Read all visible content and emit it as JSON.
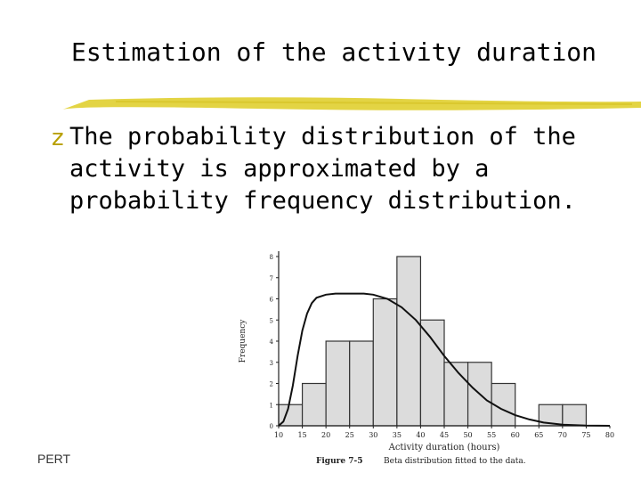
{
  "slide": {
    "title": "Estimation of the activity duration",
    "bullet_icon": "z",
    "bullet_text": "The probability distribution of the activity is approximated by a probability frequency distribution.",
    "footer": "PERT",
    "accent_color": "#e0cf30"
  },
  "chart_data": {
    "type": "bar",
    "xlabel": "Activity duration (hours)",
    "ylabel": "Frequency",
    "caption_label": "Figure 7-5",
    "caption_text": "Beta distribution fitted to the data.",
    "xlim": [
      10,
      80
    ],
    "ylim": [
      0,
      8
    ],
    "xticks": [
      10,
      15,
      20,
      25,
      30,
      35,
      40,
      45,
      50,
      55,
      60,
      65,
      70,
      75,
      80
    ],
    "yticks": [
      0,
      1,
      2,
      3,
      4,
      5,
      6,
      7,
      8
    ],
    "bins": [
      {
        "from": 10,
        "to": 15,
        "value": 1
      },
      {
        "from": 15,
        "to": 20,
        "value": 2
      },
      {
        "from": 20,
        "to": 25,
        "value": 4
      },
      {
        "from": 25,
        "to": 30,
        "value": 4
      },
      {
        "from": 30,
        "to": 35,
        "value": 6
      },
      {
        "from": 35,
        "to": 40,
        "value": 8
      },
      {
        "from": 40,
        "to": 45,
        "value": 5
      },
      {
        "from": 45,
        "to": 50,
        "value": 3
      },
      {
        "from": 50,
        "to": 55,
        "value": 3
      },
      {
        "from": 55,
        "to": 60,
        "value": 2
      },
      {
        "from": 60,
        "to": 65,
        "value": 0
      },
      {
        "from": 65,
        "to": 70,
        "value": 1
      },
      {
        "from": 70,
        "to": 75,
        "value": 1
      },
      {
        "from": 75,
        "to": 80,
        "value": 0
      }
    ],
    "fitted_curve": {
      "name": "Beta distribution",
      "points": [
        [
          10,
          0
        ],
        [
          11,
          0.2
        ],
        [
          12,
          0.8
        ],
        [
          13,
          1.9
        ],
        [
          14,
          3.3
        ],
        [
          15,
          4.5
        ],
        [
          16,
          5.3
        ],
        [
          17,
          5.8
        ],
        [
          18,
          6.05
        ],
        [
          20,
          6.2
        ],
        [
          22,
          6.25
        ],
        [
          25,
          6.25
        ],
        [
          28,
          6.25
        ],
        [
          30,
          6.2
        ],
        [
          33,
          6.0
        ],
        [
          36,
          5.6
        ],
        [
          39,
          5.0
        ],
        [
          42,
          4.2
        ],
        [
          45,
          3.3
        ],
        [
          48,
          2.5
        ],
        [
          51,
          1.8
        ],
        [
          54,
          1.2
        ],
        [
          57,
          0.8
        ],
        [
          60,
          0.5
        ],
        [
          63,
          0.3
        ],
        [
          66,
          0.15
        ],
        [
          70,
          0.05
        ],
        [
          75,
          0.01
        ],
        [
          80,
          0
        ]
      ]
    }
  }
}
